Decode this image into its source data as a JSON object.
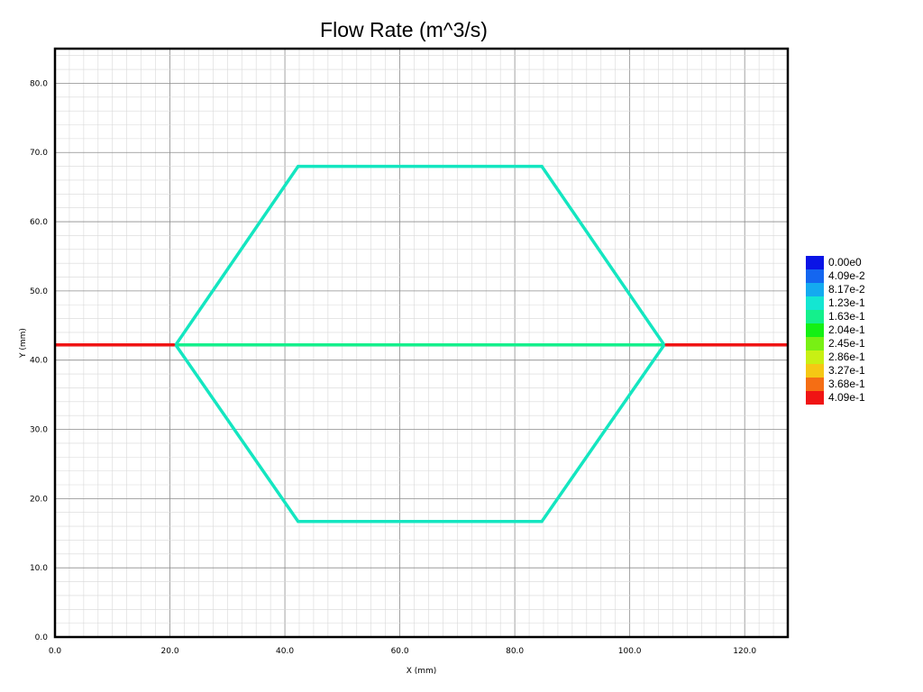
{
  "chart_data": {
    "type": "line",
    "title": "Flow Rate (m^3/s)",
    "xlabel": "X (mm)",
    "ylabel": "Y (mm)",
    "xlim": [
      0,
      127.5
    ],
    "ylim": [
      0,
      85
    ],
    "x_ticks": [
      0,
      20,
      40,
      60,
      80,
      100,
      120
    ],
    "x_tick_labels": [
      "0.0",
      "20.0",
      "40.0",
      "60.0",
      "80.0",
      "100.0",
      "120.0"
    ],
    "y_ticks": [
      0,
      10,
      20,
      30,
      40,
      50,
      60,
      70,
      80
    ],
    "y_tick_labels": [
      "0.0",
      "10.0",
      "20.0",
      "30.0",
      "40.0",
      "50.0",
      "60.0",
      "70.0",
      "80.0"
    ],
    "grid": true,
    "legend_position": "right",
    "legend": [
      {
        "label": "0.00e0",
        "color": "#0a14e6"
      },
      {
        "label": "4.09e-2",
        "color": "#1466f0"
      },
      {
        "label": "8.17e-2",
        "color": "#14aaf0"
      },
      {
        "label": "1.23e-1",
        "color": "#14e6d2"
      },
      {
        "label": "1.63e-1",
        "color": "#14f08c"
      },
      {
        "label": "2.04e-1",
        "color": "#14f014"
      },
      {
        "label": "2.45e-1",
        "color": "#78f014"
      },
      {
        "label": "2.86e-1",
        "color": "#c8f014"
      },
      {
        "label": "3.27e-1",
        "color": "#f5c814"
      },
      {
        "label": "3.68e-1",
        "color": "#f56e14"
      },
      {
        "label": "4.09e-1",
        "color": "#f01414"
      }
    ],
    "segments": [
      {
        "x": [
          0,
          21
        ],
        "y": [
          42.2,
          42.2
        ],
        "value": 0.409,
        "color": "#f01414"
      },
      {
        "x": [
          106,
          127.5
        ],
        "y": [
          42.2,
          42.2
        ],
        "value": 0.409,
        "color": "#f01414"
      },
      {
        "x": [
          21,
          106
        ],
        "y": [
          42.2,
          42.2
        ],
        "value": 0.163,
        "color": "#14f08c"
      },
      {
        "x": [
          21,
          42.3,
          84.7,
          106
        ],
        "y": [
          42.2,
          68,
          68,
          42.2
        ],
        "value": 0.123,
        "color": "#14e6c0"
      },
      {
        "x": [
          21,
          42.3,
          84.7,
          106
        ],
        "y": [
          42.2,
          16.7,
          16.7,
          42.2
        ],
        "value": 0.123,
        "color": "#14e6c0"
      }
    ]
  }
}
